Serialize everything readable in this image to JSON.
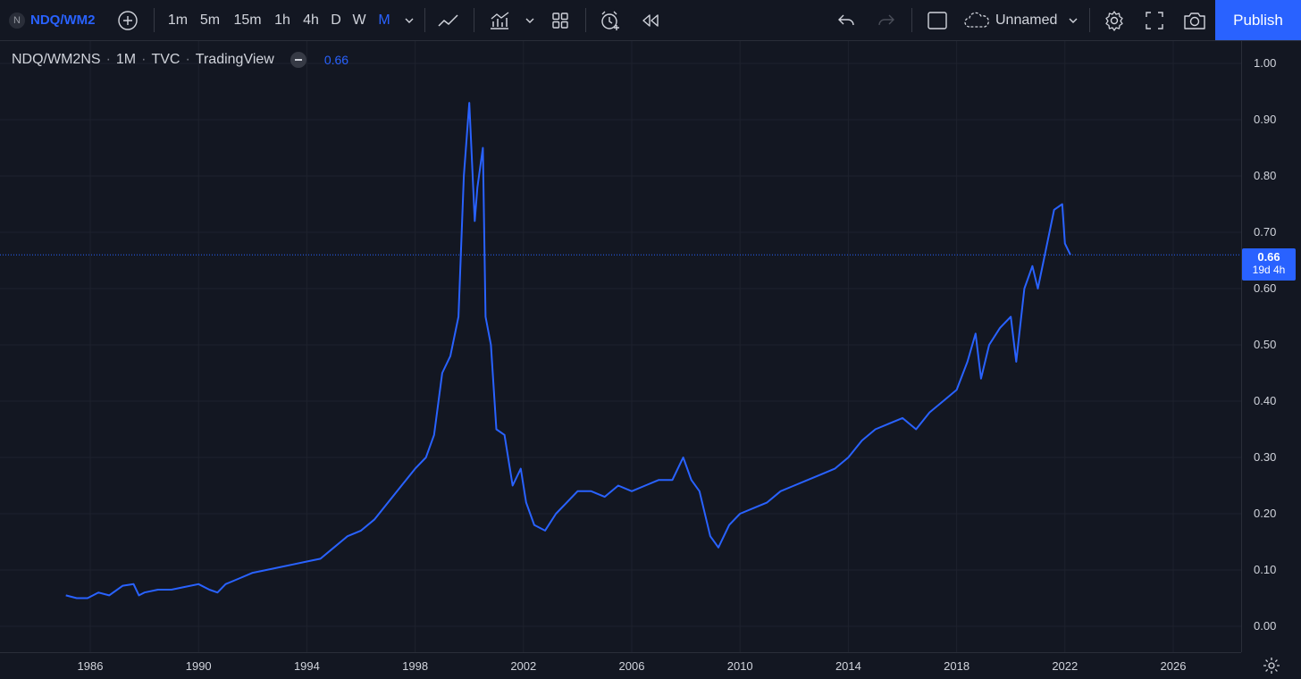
{
  "toolbar": {
    "symbol_badge": "N",
    "symbol": "NDQ/WM2NS",
    "timeframes": [
      "1m",
      "5m",
      "15m",
      "1h",
      "4h",
      "D",
      "W",
      "M"
    ],
    "active_timeframe": "M",
    "layout_name": "Unnamed",
    "publish_label": "Publish",
    "icons": [
      "add-symbol-icon",
      "chevron-down-icon",
      "line-chart-icon",
      "indicators-icon",
      "chevron-down-icon",
      "layouts-icon",
      "alert-icon",
      "replay-icon",
      "undo-icon",
      "redo-icon",
      "square-icon",
      "cloud-icon",
      "chevron-down-icon",
      "settings-icon",
      "fullscreen-icon",
      "camera-icon"
    ]
  },
  "legend": {
    "symbol": "NDQ/WM2NS",
    "interval": "1M",
    "exchange": "TVC",
    "source": "TradingView",
    "value": "0.66"
  },
  "price_label": {
    "value": "0.66",
    "countdown": "19d 4h"
  },
  "colors": {
    "background": "#131722",
    "line": "#2962ff",
    "grid": "#1e222d",
    "text": "#d1d4dc",
    "accent": "#2962ff"
  },
  "chart_data": {
    "type": "line",
    "y_ticks": [
      "0.00",
      "0.10",
      "0.20",
      "0.30",
      "0.40",
      "0.50",
      "0.60",
      "0.70",
      "0.80",
      "0.90",
      "1.00"
    ],
    "x_ticks": [
      "1986",
      "1990",
      "1994",
      "1998",
      "2002",
      "2006",
      "2010",
      "2014",
      "2018",
      "2022",
      "2026"
    ],
    "ylim": [
      0.0,
      1.0
    ],
    "xlim": [
      1984.2,
      2027.6
    ],
    "grid": true,
    "series": [
      {
        "x": [
          1985.1,
          1985.5,
          1985.9,
          1986.3,
          1986.7,
          1987.2,
          1987.6,
          1987.8,
          1988.0,
          1988.5,
          1989.0,
          1989.5,
          1990.0,
          1990.4,
          1990.7,
          1991.0,
          1991.5,
          1992.0,
          1992.5,
          1993.0,
          1993.5,
          1994.0,
          1994.5,
          1995.0,
          1995.5,
          1996.0,
          1996.5,
          1997.0,
          1997.5,
          1998.0,
          1998.4,
          1998.7,
          1999.0,
          1999.3,
          1999.6,
          1999.8,
          2000.0,
          2000.2,
          2000.3,
          2000.5,
          2000.6,
          2000.8,
          2001.0,
          2001.3,
          2001.6,
          2001.9,
          2002.1,
          2002.4,
          2002.8,
          2003.2,
          2003.6,
          2004.0,
          2004.5,
          2005.0,
          2005.5,
          2006.0,
          2006.5,
          2007.0,
          2007.5,
          2007.9,
          2008.2,
          2008.5,
          2008.9,
          2009.2,
          2009.6,
          2010.0,
          2010.5,
          2011.0,
          2011.5,
          2012.0,
          2012.5,
          2013.0,
          2013.5,
          2014.0,
          2014.5,
          2015.0,
          2015.5,
          2016.0,
          2016.5,
          2017.0,
          2017.5,
          2018.0,
          2018.4,
          2018.7,
          2018.9,
          2019.2,
          2019.6,
          2020.0,
          2020.2,
          2020.5,
          2020.8,
          2021.0,
          2021.3,
          2021.6,
          2021.9,
          2022.0,
          2022.2
        ],
        "values": [
          0.055,
          0.05,
          0.05,
          0.06,
          0.055,
          0.072,
          0.075,
          0.055,
          0.06,
          0.065,
          0.065,
          0.07,
          0.075,
          0.065,
          0.06,
          0.075,
          0.085,
          0.095,
          0.1,
          0.105,
          0.11,
          0.115,
          0.12,
          0.14,
          0.16,
          0.17,
          0.19,
          0.22,
          0.25,
          0.28,
          0.3,
          0.34,
          0.45,
          0.48,
          0.55,
          0.8,
          0.93,
          0.72,
          0.78,
          0.85,
          0.55,
          0.5,
          0.35,
          0.34,
          0.25,
          0.28,
          0.22,
          0.18,
          0.17,
          0.2,
          0.22,
          0.24,
          0.24,
          0.23,
          0.25,
          0.24,
          0.25,
          0.26,
          0.26,
          0.3,
          0.26,
          0.24,
          0.16,
          0.14,
          0.18,
          0.2,
          0.21,
          0.22,
          0.24,
          0.25,
          0.26,
          0.27,
          0.28,
          0.3,
          0.33,
          0.35,
          0.36,
          0.37,
          0.35,
          0.38,
          0.4,
          0.42,
          0.47,
          0.52,
          0.44,
          0.5,
          0.53,
          0.55,
          0.47,
          0.6,
          0.64,
          0.6,
          0.67,
          0.74,
          0.75,
          0.68,
          0.66
        ]
      }
    ]
  }
}
